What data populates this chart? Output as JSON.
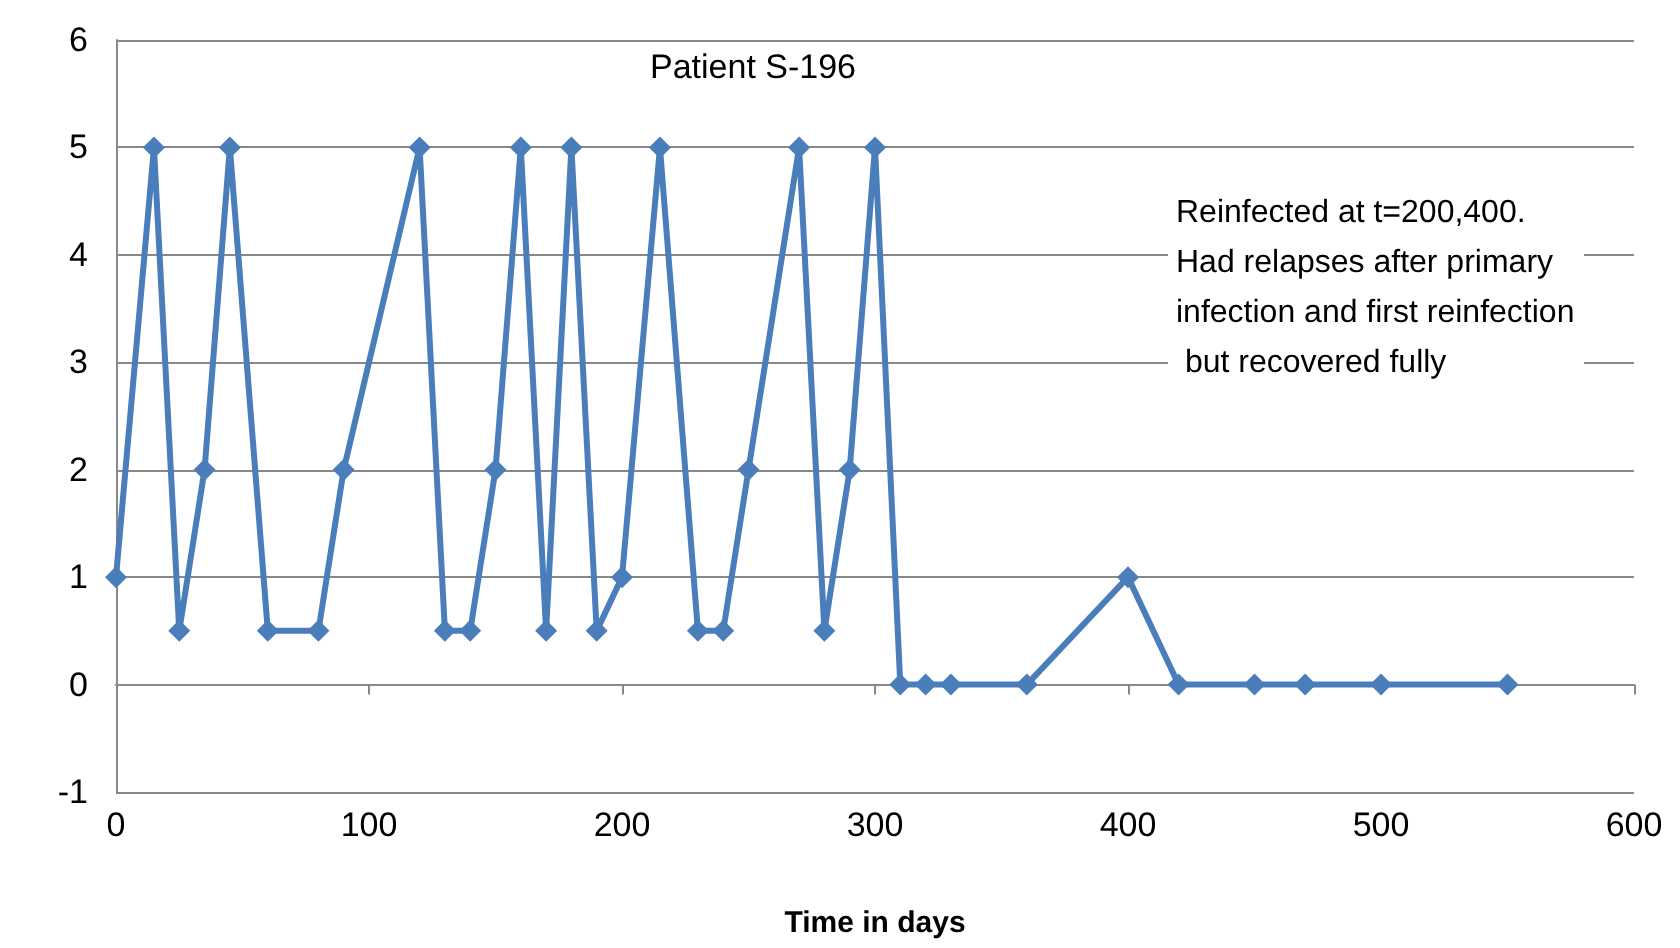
{
  "chart_data": {
    "type": "line",
    "title": "Patient S-196",
    "xlabel": "Time in days",
    "annotations": [
      "Reinfected at t=200,400. Had relapses after primary infection and first reinfection but recovered fully"
    ],
    "x": [
      0,
      15,
      25,
      35,
      45,
      60,
      80,
      90,
      120,
      130,
      140,
      150,
      160,
      170,
      180,
      190,
      200,
      215,
      230,
      240,
      250,
      270,
      280,
      290,
      300,
      310,
      320,
      330,
      360,
      400,
      420,
      450,
      470,
      500,
      550
    ],
    "series": [
      {
        "color": "#4a7ebb",
        "values": [
          1,
          5,
          0.5,
          2,
          5,
          0.5,
          0.5,
          2,
          5,
          0.5,
          0.5,
          2,
          5,
          0.5,
          5,
          0.5,
          1,
          5,
          0.5,
          0.5,
          2,
          5,
          0.5,
          2,
          5,
          0,
          0,
          0,
          0,
          1,
          0,
          0,
          0,
          0,
          0
        ]
      }
    ],
    "xlim": [
      0,
      600
    ],
    "xticks": [
      0,
      100,
      200,
      300,
      400,
      500,
      600
    ],
    "ylim": [
      -1,
      6
    ],
    "yticks": [
      -1,
      0,
      1,
      2,
      3,
      4,
      5,
      6
    ],
    "grid": "y",
    "marker": "diamond",
    "line_style": "solid"
  }
}
